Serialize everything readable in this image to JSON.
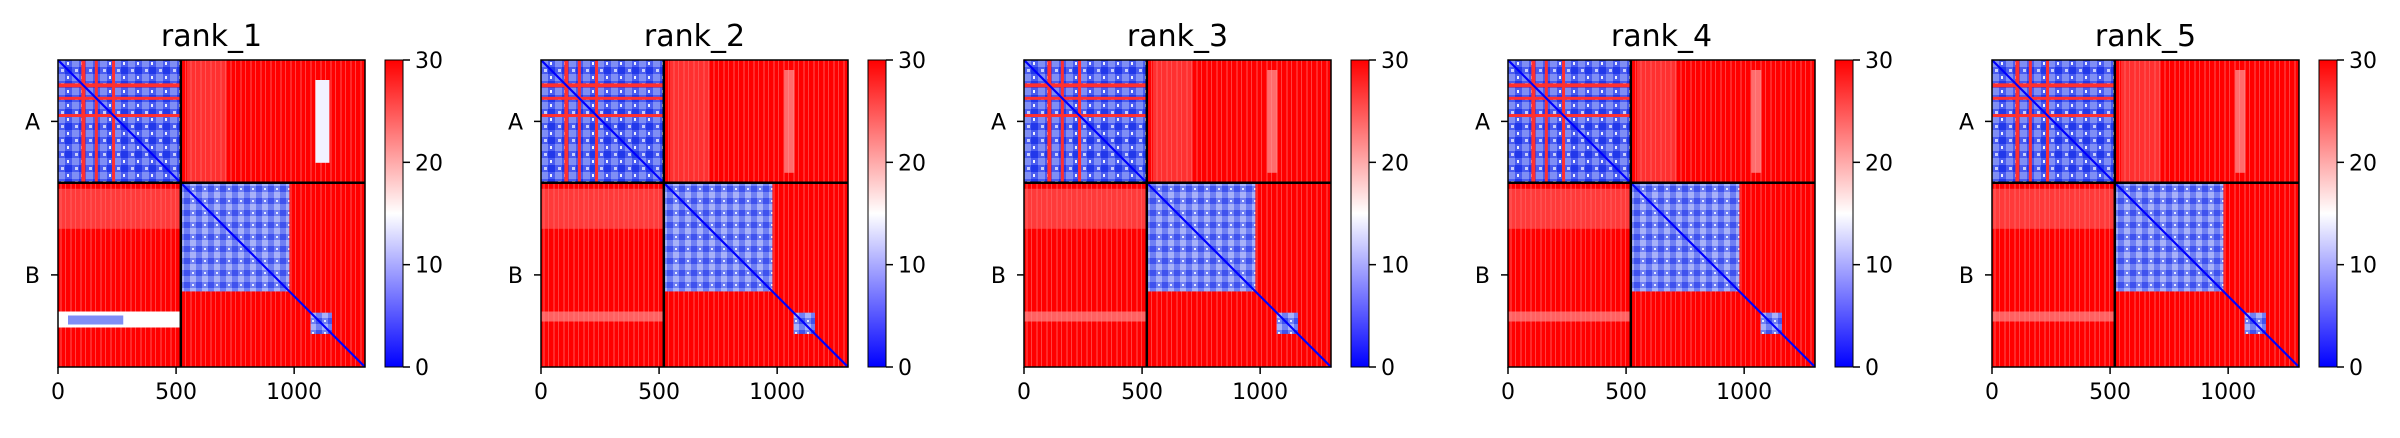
{
  "chart_data": {
    "type": "heatmap",
    "colormap": [
      "#0000ff",
      "#ffffff",
      "#ff0000"
    ],
    "color_range": [
      0,
      30
    ],
    "colorbar_ticks": [
      "0",
      "10",
      "20",
      "30"
    ],
    "x_ticks": [
      "0",
      "500",
      "1000"
    ],
    "x_tick_values": [
      0,
      500,
      1000
    ],
    "x_range": [
      0,
      1300
    ],
    "chain_boundary": 520,
    "chain_labels": [
      "A",
      "B"
    ],
    "panels": [
      {
        "title": "rank_1"
      },
      {
        "title": "rank_2"
      },
      {
        "title": "rank_3"
      },
      {
        "title": "rank_4"
      },
      {
        "title": "rank_5"
      }
    ]
  }
}
